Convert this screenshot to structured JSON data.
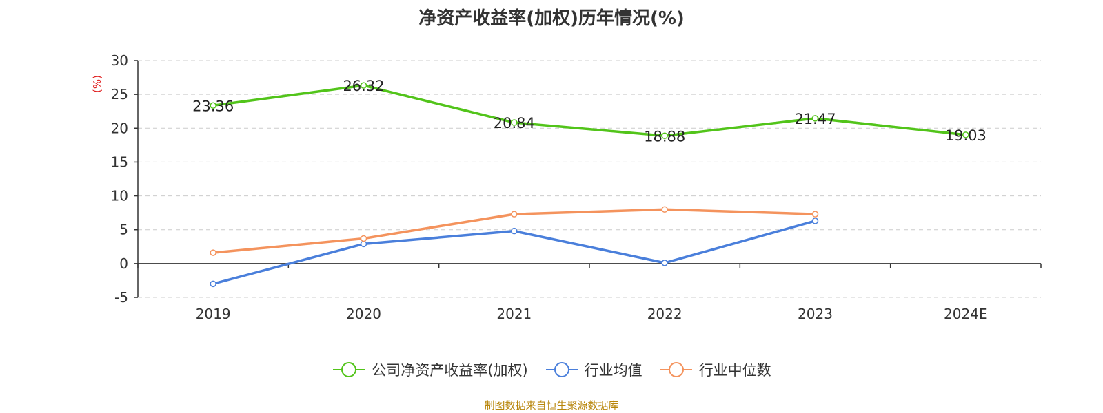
{
  "chart_data": {
    "type": "line",
    "title": "净资产收益率(加权)历年情况(%)",
    "ylabel": "(%)",
    "categories": [
      "2019",
      "2020",
      "2021",
      "2022",
      "2023",
      "2024E"
    ],
    "ylim": [
      -5,
      30
    ],
    "yticks": [
      -5,
      0,
      5,
      10,
      15,
      20,
      25,
      30
    ],
    "grid": true,
    "legend_position": "bottom",
    "series": [
      {
        "name": "公司净资产收益率(加权)",
        "color": "#52c41a",
        "values": [
          23.36,
          26.32,
          20.84,
          18.88,
          21.47,
          19.03
        ],
        "labels": [
          "23.36",
          "26.32",
          "20.84",
          "18.88",
          "21.47",
          "19.03"
        ]
      },
      {
        "name": "行业均值",
        "color": "#4a7fdb",
        "values": [
          -3.0,
          2.9,
          4.8,
          0.1,
          6.3,
          null
        ]
      },
      {
        "name": "行业中位数",
        "color": "#f4935d",
        "values": [
          1.6,
          3.7,
          7.3,
          8.0,
          7.3,
          null
        ]
      }
    ]
  },
  "source_note": "制图数据来自恒生聚源数据库"
}
